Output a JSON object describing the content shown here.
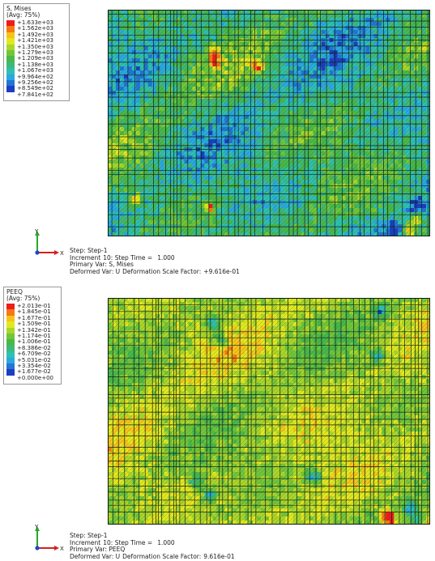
{
  "palette": [
    "#ee1c1c",
    "#f57a12",
    "#f7c31b",
    "#e2e81e",
    "#a9d62a",
    "#70c63a",
    "#48b84a",
    "#3fb87b",
    "#2ec0b1",
    "#2aa8e0",
    "#2376d2",
    "#1b3fc0"
  ],
  "panels": [
    {
      "legend": {
        "title": "S, Mises",
        "subtitle": "(Avg: 75%)",
        "levels": [
          "+1.633e+03",
          "+1.562e+03",
          "+1.492e+03",
          "+1.421e+03",
          "+1.350e+03",
          "+1.279e+03",
          "+1.209e+03",
          "+1.138e+03",
          "+1.067e+03",
          "+9.964e+02",
          "+9.256e+02",
          "+8.549e+02",
          "+7.841e+02"
        ]
      },
      "field": {
        "seed": 11,
        "base_index": 7,
        "spread": 4.2,
        "hot_spots": [
          [
            0.32,
            0.18
          ],
          [
            0.33,
            0.22
          ],
          [
            0.31,
            0.86
          ],
          [
            0.95,
            0.92
          ],
          [
            0.93,
            0.97
          ],
          [
            0.08,
            0.83
          ],
          [
            0.46,
            0.24
          ]
        ],
        "cool_spots": [
          [
            0.95,
            0.85
          ],
          [
            0.88,
            0.96
          ]
        ]
      },
      "step_info": {
        "step": "Step: Step-1",
        "increment_label": "Increment",
        "increment_value": "10: Step Time =",
        "step_time": "1.000",
        "primary_var": "Primary Var: S, Mises",
        "deformed_var": "Deformed Var: U",
        "scale_label": "Deformation Scale Factor:",
        "scale_value": "+9.616e-01"
      },
      "axes": {
        "y": "Y",
        "x": "X",
        "z": "Z"
      }
    },
    {
      "legend": {
        "title": "PEEQ",
        "subtitle": "(Avg: 75%)",
        "levels": [
          "+2.013e-01",
          "+1.845e-01",
          "+1.677e-01",
          "+1.509e-01",
          "+1.342e-01",
          "+1.174e-01",
          "+1.006e-01",
          "+8.386e-02",
          "+6.709e-02",
          "+5.031e-02",
          "+3.354e-02",
          "+1.677e-02",
          "+0.000e+00"
        ]
      },
      "field": {
        "seed": 23,
        "base_index": 4,
        "spread": 2.6,
        "hot_spots": [
          [
            0.87,
            0.97
          ],
          [
            0.86,
            0.95
          ]
        ],
        "cool_spots": [
          [
            0.32,
            0.1
          ],
          [
            0.34,
            0.17
          ],
          [
            0.84,
            0.05
          ],
          [
            0.83,
            0.25
          ],
          [
            0.31,
            0.86
          ],
          [
            0.93,
            0.92
          ],
          [
            0.95,
            0.97
          ],
          [
            0.27,
            0.8
          ],
          [
            0.63,
            0.78
          ]
        ]
      },
      "step_info": {
        "step": "Step: Step-1",
        "increment_label": "Increment",
        "increment_value": "10: Step Time =",
        "step_time": "1.000",
        "primary_var": "Primary Var: PEEQ",
        "deformed_var": "Deformed Var: U",
        "scale_label": "Deformation Scale Factor:",
        "scale_value": "9.616e-01"
      },
      "axes": {
        "y": "Y",
        "x": "X",
        "z": "Z"
      }
    }
  ]
}
